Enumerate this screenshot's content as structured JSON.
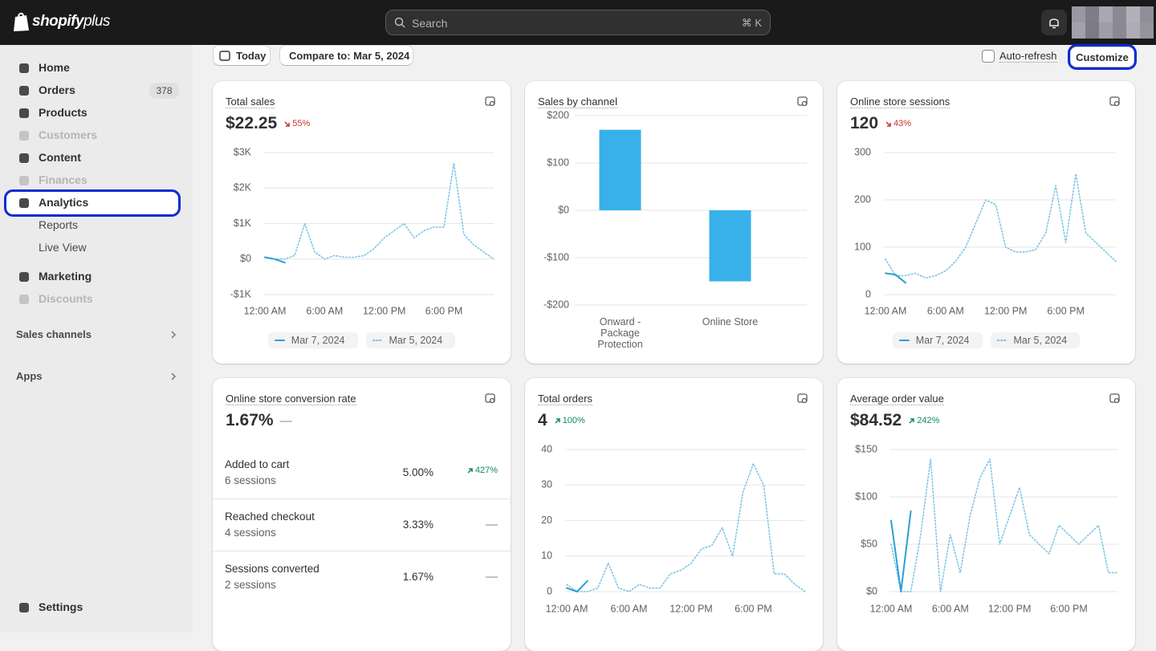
{
  "topbar": {
    "logo": "shopify",
    "logo_suffix": "plus",
    "search": "Search",
    "shortcut": "⌘ K"
  },
  "sidebar": {
    "nav_main": [
      {
        "label": "Home"
      },
      {
        "label": "Orders",
        "badge": 378
      },
      {
        "label": "Products"
      },
      {
        "label": "Customers",
        "disabled": true
      },
      {
        "label": "Content"
      },
      {
        "label": "Finances",
        "disabled": true
      },
      {
        "label": "Analytics",
        "selected": true
      }
    ],
    "nav_sub": [
      "Reports",
      "Live View"
    ],
    "nav_more": [
      {
        "label": "Marketing"
      },
      {
        "label": "Discounts",
        "disabled": true
      }
    ],
    "sections": [
      "Sales channels",
      "Apps"
    ],
    "settings": "Settings"
  },
  "toolbar": {
    "date": "Today",
    "compare": "Compare to: Mar 5, 2024",
    "auto_refresh": "Auto-refresh",
    "customize": "Customize",
    "customize_highlighted": true
  },
  "cards": [
    {
      "title": "Total sales",
      "value": "$22.25",
      "change": "55%",
      "trend": "down",
      "chart": {
        "type": "line",
        "legend": true,
        "x": [
          0,
          1,
          2,
          3,
          4,
          5,
          6,
          7,
          8,
          9,
          10,
          11,
          12,
          13,
          14,
          15,
          16,
          17,
          18,
          19,
          20,
          21,
          22,
          23
        ],
        "xlim": [
          0,
          23
        ],
        "xticks": [
          {
            "value": 0,
            "label": "12:00 AM"
          },
          {
            "value": 6,
            "label": "6:00 AM"
          },
          {
            "value": 12,
            "label": "12:00 PM"
          },
          {
            "value": 18,
            "label": "6:00 PM"
          }
        ],
        "ylim": [
          -1000,
          3000
        ],
        "yticks": [
          {
            "value": 3000,
            "label": "$3K"
          },
          {
            "value": 2000,
            "label": "$2K"
          },
          {
            "value": 1000,
            "label": "$1K"
          },
          {
            "value": 0,
            "label": "$0"
          },
          {
            "value": -1000,
            "label": "-$1K"
          }
        ],
        "grid": true,
        "series": [
          {
            "name": "Mar 7, 2024",
            "color": "#2d9fd0",
            "style": "solid",
            "values": [
              50,
              0,
              -100,
              null,
              null,
              null,
              null,
              null,
              null,
              null,
              null,
              null,
              null,
              null,
              null,
              null,
              null,
              null,
              null,
              null,
              null,
              null,
              null,
              null
            ]
          },
          {
            "name": "Mar 5, 2024",
            "color": "#7cc5e6",
            "style": "dotted",
            "values": [
              50,
              0,
              0,
              100,
              1000,
              200,
              0,
              100,
              50,
              50,
              100,
              300,
              600,
              800,
              1000,
              600,
              800,
              900,
              900,
              2700,
              700,
              400,
              200,
              0
            ]
          }
        ]
      }
    },
    {
      "title": "Sales by channel",
      "chart": {
        "type": "bar",
        "color": "#38b0ea",
        "categories": [
          "Onward - Package Protection",
          "Online Store"
        ],
        "values": [
          170,
          -150
        ],
        "ylim": [
          -200,
          200
        ],
        "yticks": [
          {
            "value": 200,
            "label": "$200"
          },
          {
            "value": 100,
            "label": "$100"
          },
          {
            "value": 0,
            "label": "$0"
          },
          {
            "value": -100,
            "label": "-$100"
          },
          {
            "value": -200,
            "label": "-$200"
          }
        ],
        "grid": true
      }
    },
    {
      "title": "Online store sessions",
      "value": "120",
      "change": "43%",
      "trend": "down",
      "chart": {
        "type": "line",
        "legend": true,
        "x": [
          0,
          1,
          2,
          3,
          4,
          5,
          6,
          7,
          8,
          9,
          10,
          11,
          12,
          13,
          14,
          15,
          16,
          17,
          18,
          19,
          20,
          21,
          22,
          23
        ],
        "xlim": [
          0,
          23
        ],
        "xticks": [
          {
            "value": 0,
            "label": "12:00 AM"
          },
          {
            "value": 6,
            "label": "6:00 AM"
          },
          {
            "value": 12,
            "label": "12:00 PM"
          },
          {
            "value": 18,
            "label": "6:00 PM"
          }
        ],
        "ylim": [
          0,
          300
        ],
        "yticks": [
          300,
          200,
          100,
          0
        ],
        "grid": true,
        "series": [
          {
            "name": "Mar 7, 2024",
            "color": "#2d9fd0",
            "style": "solid",
            "values": [
              45,
              42,
              25,
              null,
              null,
              null,
              null,
              null,
              null,
              null,
              null,
              null,
              null,
              null,
              null,
              null,
              null,
              null,
              null,
              null,
              null,
              null,
              null,
              null
            ]
          },
          {
            "name": "Mar 5, 2024",
            "color": "#7cc5e6",
            "style": "dotted",
            "values": [
              75,
              40,
              40,
              45,
              35,
              40,
              50,
              70,
              100,
              150,
              200,
              190,
              100,
              90,
              90,
              95,
              130,
              230,
              110,
              255,
              130,
              110,
              90,
              70
            ]
          }
        ]
      }
    },
    {
      "title": "Online store conversion rate",
      "value": "1.67%",
      "change": "—",
      "trend": "flat",
      "rows": [
        {
          "label": "Added to cart",
          "sessions": "6 sessions",
          "value": "5.00%",
          "change": "427%",
          "trend": "up"
        },
        {
          "label": "Reached checkout",
          "sessions": "4 sessions",
          "value": "3.33%",
          "change": "—",
          "trend": "flat"
        },
        {
          "label": "Sessions converted",
          "sessions": "2 sessions",
          "value": "1.67%",
          "change": "—",
          "trend": "flat"
        }
      ]
    },
    {
      "title": "Total orders",
      "value": "4",
      "change": "100%",
      "trend": "up",
      "chart": {
        "type": "line",
        "legend": false,
        "x": [
          0,
          1,
          2,
          3,
          4,
          5,
          6,
          7,
          8,
          9,
          10,
          11,
          12,
          13,
          14,
          15,
          16,
          17,
          18,
          19,
          20,
          21,
          22,
          23
        ],
        "xlim": [
          0,
          23
        ],
        "xticks": [
          {
            "value": 0,
            "label": "12:00 AM"
          },
          {
            "value": 6,
            "label": "6:00 AM"
          },
          {
            "value": 12,
            "label": "12:00 PM"
          },
          {
            "value": 18,
            "label": "6:00 PM"
          }
        ],
        "ylim": [
          0,
          40
        ],
        "yticks": [
          40,
          30,
          20,
          10,
          0
        ],
        "grid": true,
        "series": [
          {
            "color": "#2d9fd0",
            "style": "solid",
            "values": [
              1,
              0,
              3,
              null,
              null,
              null,
              null,
              null,
              null,
              null,
              null,
              null,
              null,
              null,
              null,
              null,
              null,
              null,
              null,
              null,
              null,
              null,
              null,
              null
            ]
          },
          {
            "color": "#7cc5e6",
            "style": "dotted",
            "values": [
              2,
              0,
              0,
              1,
              8,
              1,
              0,
              2,
              1,
              1,
              5,
              6,
              8,
              12,
              13,
              18,
              10,
              28,
              36,
              30,
              5,
              5,
              2,
              0
            ]
          }
        ]
      }
    },
    {
      "title": "Average order value",
      "value": "$84.52",
      "change": "242%",
      "trend": "up",
      "chart": {
        "type": "line",
        "legend": false,
        "x": [
          0,
          1,
          2,
          3,
          4,
          5,
          6,
          7,
          8,
          9,
          10,
          11,
          12,
          13,
          14,
          15,
          16,
          17,
          18,
          19,
          20,
          21,
          22,
          23
        ],
        "xlim": [
          0,
          23
        ],
        "xticks": [
          {
            "value": 0,
            "label": "12:00 AM"
          },
          {
            "value": 6,
            "label": "6:00 AM"
          },
          {
            "value": 12,
            "label": "12:00 PM"
          },
          {
            "value": 18,
            "label": "6:00 PM"
          }
        ],
        "ylim": [
          0,
          150
        ],
        "yticks": [
          {
            "value": 150,
            "label": "$150"
          },
          {
            "value": 100,
            "label": "$100"
          },
          {
            "value": 50,
            "label": "$50"
          },
          {
            "value": 0,
            "label": "$0"
          }
        ],
        "grid": true,
        "series": [
          {
            "color": "#2d9fd0",
            "style": "solid",
            "values": [
              75,
              0,
              85,
              null,
              null,
              null,
              null,
              null,
              null,
              null,
              null,
              null,
              null,
              null,
              null,
              null,
              null,
              null,
              null,
              null,
              null,
              null,
              null,
              null
            ]
          },
          {
            "color": "#7cc5e6",
            "style": "dotted",
            "values": [
              50,
              0,
              0,
              60,
              140,
              0,
              60,
              20,
              80,
              120,
              140,
              50,
              80,
              110,
              60,
              50,
              40,
              70,
              60,
              50,
              60,
              70,
              20,
              20
            ]
          }
        ]
      }
    }
  ]
}
